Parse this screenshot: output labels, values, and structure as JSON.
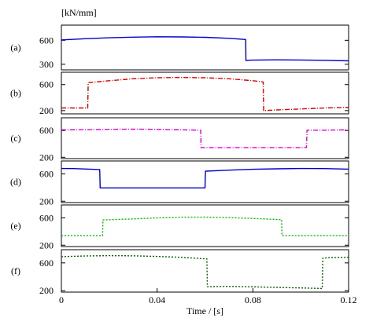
{
  "chart_data": [
    {
      "type": "line",
      "panel_label": "(a)",
      "unit_label": "[kN/mm]",
      "ylim": [
        230,
        790
      ],
      "yticks": [
        "600",
        "300"
      ],
      "ytick_values": [
        600,
        300
      ],
      "series": [
        {
          "color": "#0000cc",
          "dash": "",
          "x": [
            0,
            0.002,
            0.01,
            0.02,
            0.03,
            0.04,
            0.05,
            0.06,
            0.07,
            0.077,
            0.0771,
            0.079,
            0.09,
            0.1,
            0.11,
            0.12
          ],
          "y": [
            605,
            607,
            620,
            632,
            640,
            645,
            643,
            638,
            625,
            610,
            348,
            352,
            356,
            354,
            350,
            343
          ]
        }
      ]
    },
    {
      "type": "line",
      "panel_label": "(b)",
      "ylim": [
        150,
        790
      ],
      "yticks": [
        "600",
        "200"
      ],
      "ytick_values": [
        600,
        200
      ],
      "series": [
        {
          "color": "#dd0000",
          "dash": "6,2,1,2",
          "x": [
            0,
            0.005,
            0.011,
            0.0112,
            0.02,
            0.03,
            0.04,
            0.05,
            0.06,
            0.07,
            0.08,
            0.0843,
            0.0845,
            0.09,
            0.1,
            0.11,
            0.12
          ],
          "y": [
            240,
            240,
            240,
            630,
            660,
            690,
            705,
            710,
            706,
            690,
            660,
            640,
            200,
            210,
            225,
            240,
            250
          ]
        }
      ]
    },
    {
      "type": "line",
      "panel_label": "(c)",
      "ylim": [
        180,
        790
      ],
      "yticks": [
        "600",
        "200"
      ],
      "ytick_values": [
        600,
        200
      ],
      "series": [
        {
          "color": "#dd00dd",
          "dash": "6,2,1,2",
          "x": [
            0,
            0.01,
            0.02,
            0.03,
            0.04,
            0.05,
            0.0582,
            0.0584,
            0.07,
            0.08,
            0.09,
            0.1024,
            0.1026,
            0.11,
            0.12
          ],
          "y": [
            610,
            612,
            617,
            620,
            617,
            610,
            603,
            345,
            345,
            345,
            345,
            345,
            605,
            605,
            610
          ]
        }
      ]
    },
    {
      "type": "line",
      "panel_label": "(d)",
      "ylim": [
        180,
        790
      ],
      "yticks": [
        "600",
        "200"
      ],
      "ytick_values": [
        600,
        200
      ],
      "series": [
        {
          "color": "#0000cc",
          "dash": "",
          "x": [
            0,
            0.005,
            0.016,
            0.0162,
            0.025,
            0.035,
            0.045,
            0.06,
            0.0602,
            0.07,
            0.08,
            0.09,
            0.1,
            0.11,
            0.12
          ],
          "y": [
            680,
            678,
            665,
            395,
            395,
            395,
            395,
            395,
            640,
            655,
            668,
            675,
            680,
            678,
            670
          ]
        }
      ]
    },
    {
      "type": "line",
      "panel_label": "(e)",
      "ylim": [
        180,
        790
      ],
      "yticks": [
        "600",
        "200"
      ],
      "ytick_values": [
        600,
        200
      ],
      "series": [
        {
          "color": "#00bb00",
          "dash": "2,2",
          "x": [
            0,
            0.01,
            0.0172,
            0.0174,
            0.03,
            0.04,
            0.05,
            0.06,
            0.07,
            0.08,
            0.092,
            0.0922,
            0.1,
            0.11,
            0.12
          ],
          "y": [
            340,
            340,
            340,
            570,
            585,
            600,
            610,
            612,
            605,
            592,
            575,
            340,
            340,
            340,
            340
          ]
        }
      ]
    },
    {
      "type": "line",
      "panel_label": "(f)",
      "ylim": [
        180,
        790
      ],
      "yticks": [
        "600",
        "200"
      ],
      "ytick_values": [
        600,
        200
      ],
      "xlabel": "Time / [s]",
      "xlim": [
        0,
        0.12
      ],
      "xticks": [
        "0",
        "0.04",
        "0.08",
        "0.12"
      ],
      "xtick_values": [
        0,
        0.04,
        0.08,
        0.12
      ],
      "series": [
        {
          "color": "#006600",
          "dash": "2,2",
          "x": [
            0,
            0.01,
            0.02,
            0.03,
            0.04,
            0.05,
            0.0608,
            0.061,
            0.07,
            0.08,
            0.09,
            0.1,
            0.109,
            0.1092,
            0.112,
            0.12
          ],
          "y": [
            690,
            700,
            704,
            702,
            693,
            680,
            658,
            258,
            262,
            256,
            248,
            240,
            232,
            668,
            676,
            681
          ]
        }
      ]
    }
  ]
}
